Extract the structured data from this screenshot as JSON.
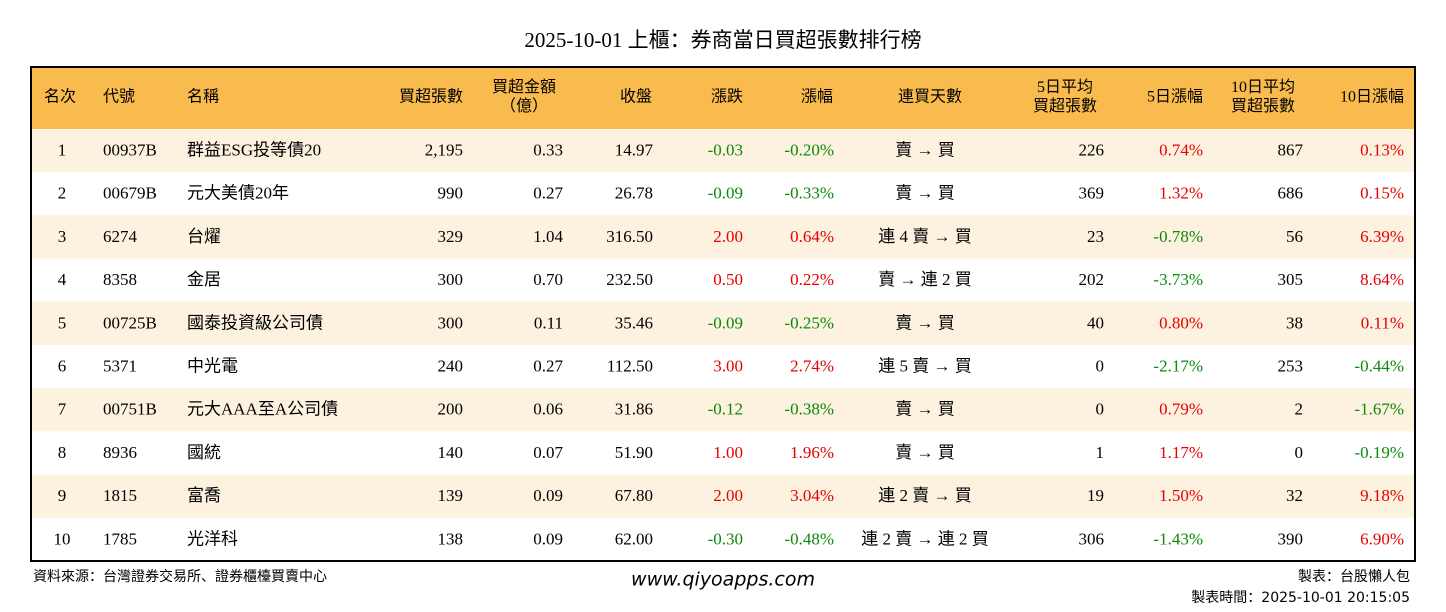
{
  "title": "2025-10-01 上櫃：券商當日買超張數排行榜",
  "table": {
    "headers": [
      [
        "名次"
      ],
      [
        "代號"
      ],
      [
        "名稱"
      ],
      [
        "買超張數"
      ],
      [
        "買超金額",
        "（億）"
      ],
      [
        "收盤"
      ],
      [
        "漲跌"
      ],
      [
        "漲幅"
      ],
      [
        "連買天數"
      ],
      [
        "5日平均",
        "買超張數"
      ],
      [
        "5日漲幅"
      ],
      [
        "10日平均",
        "買超張數"
      ],
      [
        "10日漲幅"
      ]
    ],
    "rows": [
      [
        "1",
        "00937B",
        "群益ESG投等債20",
        "2,195",
        "0.33",
        "14.97",
        "-0.03",
        "-0.20%",
        "賣 → 買",
        "226",
        "0.74%",
        "867",
        "0.13%"
      ],
      [
        "2",
        "00679B",
        "元大美債20年",
        "990",
        "0.27",
        "26.78",
        "-0.09",
        "-0.33%",
        "賣 → 買",
        "369",
        "1.32%",
        "686",
        "0.15%"
      ],
      [
        "3",
        "6274",
        "台燿",
        "329",
        "1.04",
        "316.50",
        "2.00",
        "0.64%",
        "連 4 賣 → 買",
        "23",
        "-0.78%",
        "56",
        "6.39%"
      ],
      [
        "4",
        "8358",
        "金居",
        "300",
        "0.70",
        "232.50",
        "0.50",
        "0.22%",
        "賣 → 連 2 買",
        "202",
        "-3.73%",
        "305",
        "8.64%"
      ],
      [
        "5",
        "00725B",
        "國泰投資級公司債",
        "300",
        "0.11",
        "35.46",
        "-0.09",
        "-0.25%",
        "賣 → 買",
        "40",
        "0.80%",
        "38",
        "0.11%"
      ],
      [
        "6",
        "5371",
        "中光電",
        "240",
        "0.27",
        "112.50",
        "3.00",
        "2.74%",
        "連 5 賣 → 買",
        "0",
        "-2.17%",
        "253",
        "-0.44%"
      ],
      [
        "7",
        "00751B",
        "元大AAA至A公司債",
        "200",
        "0.06",
        "31.86",
        "-0.12",
        "-0.38%",
        "賣 → 買",
        "0",
        "0.79%",
        "2",
        "-1.67%"
      ],
      [
        "8",
        "8936",
        "國統",
        "140",
        "0.07",
        "51.90",
        "1.00",
        "1.96%",
        "賣 → 買",
        "1",
        "1.17%",
        "0",
        "-0.19%"
      ],
      [
        "9",
        "1815",
        "富喬",
        "139",
        "0.09",
        "67.80",
        "2.00",
        "3.04%",
        "連 2 賣 → 買",
        "19",
        "1.50%",
        "32",
        "9.18%"
      ],
      [
        "10",
        "1785",
        "光洋科",
        "138",
        "0.09",
        "62.00",
        "-0.30",
        "-0.48%",
        "連 2 賣 → 連 2 買",
        "306",
        "-1.43%",
        "390",
        "6.90%"
      ]
    ]
  },
  "footer": {
    "source": "資料來源：台灣證券交易所、證券櫃檯買賣中心",
    "website": "www.qiyoapps.com",
    "maker": "製表：台股懶人包",
    "time": "製表時間：2025-10-01 20:15:05"
  }
}
